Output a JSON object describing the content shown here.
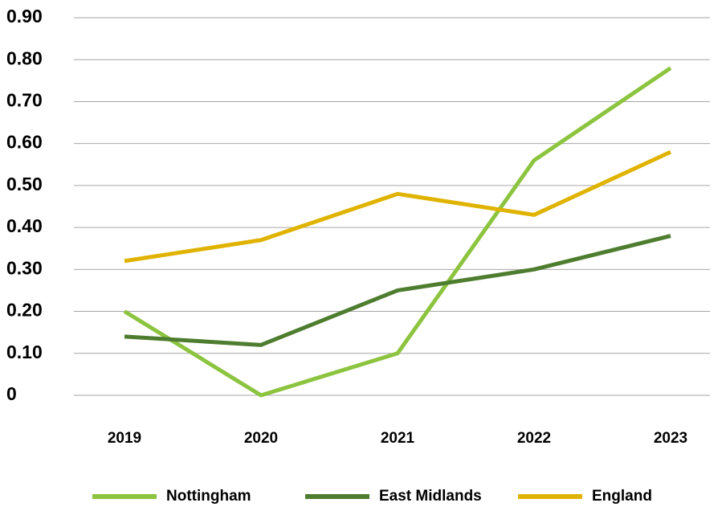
{
  "chart_data": {
    "type": "line",
    "categories": [
      "2019",
      "2020",
      "2021",
      "2022",
      "2023"
    ],
    "series": [
      {
        "name": "Nottingham",
        "color": "#8cc43f",
        "values": [
          0.2,
          0.0,
          0.1,
          0.56,
          0.78
        ]
      },
      {
        "name": "East Midlands",
        "color": "#4e7d2f",
        "values": [
          0.14,
          0.12,
          0.25,
          0.3,
          0.38
        ]
      },
      {
        "name": "England",
        "color": "#dfb300",
        "values": [
          0.32,
          0.37,
          0.48,
          0.43,
          0.58
        ]
      }
    ],
    "ylim": [
      0,
      0.9
    ],
    "yticks": [
      0,
      {
        "value": 0.1,
        "label": "0.10"
      },
      {
        "value": 0.2,
        "label": "0.20"
      },
      {
        "value": 0.3,
        "label": "0.30"
      },
      {
        "value": 0.4,
        "label": "0.40"
      },
      {
        "value": 0.5,
        "label": "0.50"
      },
      {
        "value": 0.6,
        "label": "0.60"
      },
      {
        "value": 0.7,
        "label": "0.70"
      },
      {
        "value": 0.8,
        "label": "0.80"
      },
      {
        "value": 0.9,
        "label": "0.90"
      }
    ],
    "grid": true,
    "legend": "bottom"
  }
}
